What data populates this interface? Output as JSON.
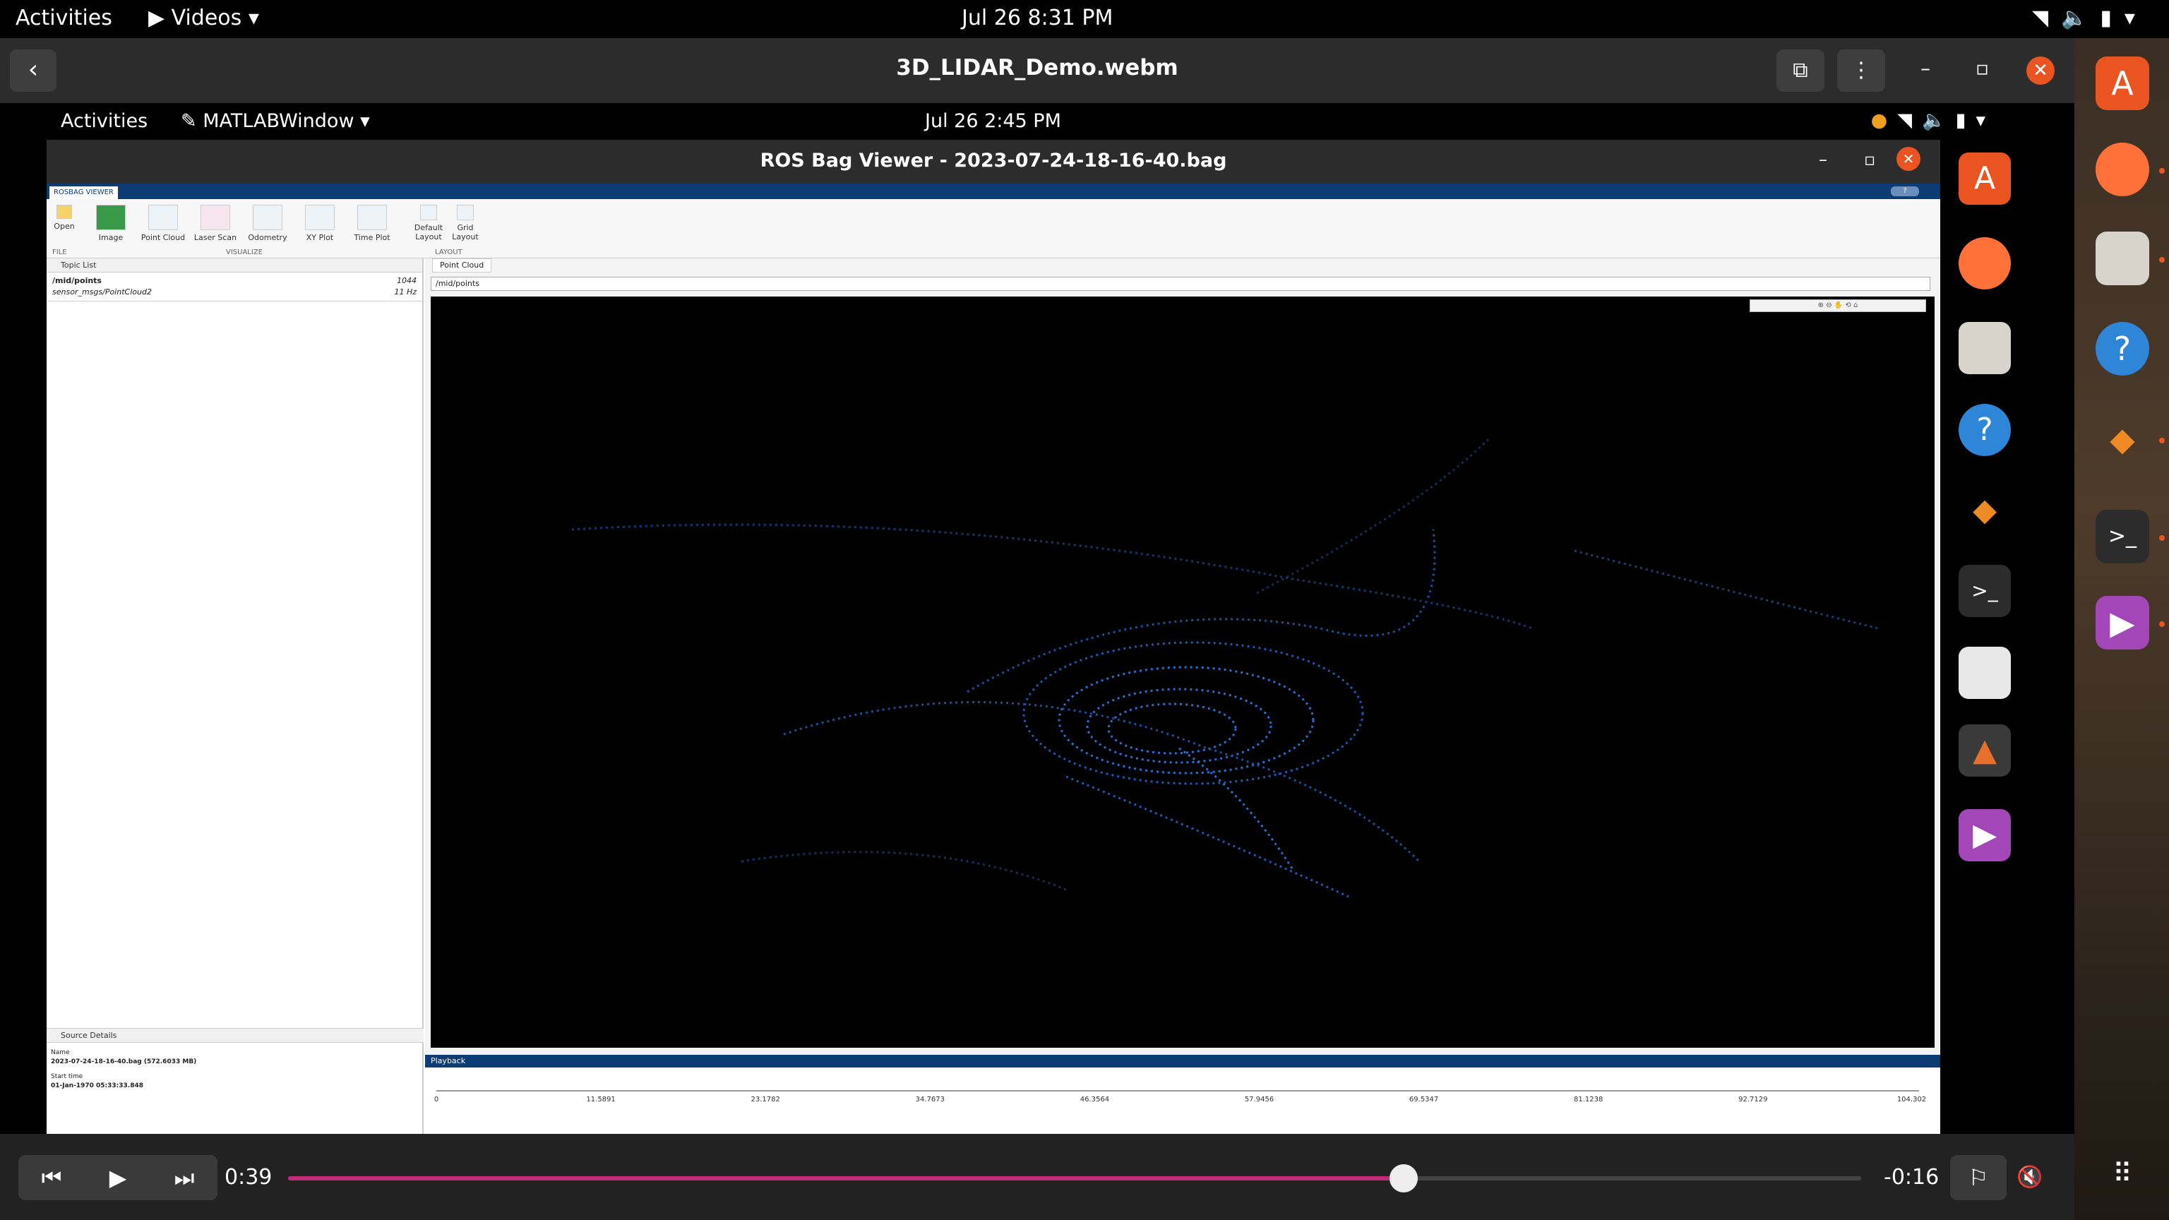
{
  "topbar": {
    "activities": "Activities",
    "app": "Videos",
    "datetime": "Jul 26  8:31 PM"
  },
  "player": {
    "title": "3D_LIDAR_Demo.webm",
    "elapsed": "0:39",
    "remaining": "-0:16",
    "progress_fraction": 0.709
  },
  "inner": {
    "activities": "Activities",
    "app": "MATLABWindow",
    "datetime": "Jul 26   2:45 PM",
    "window_title": "ROS Bag Viewer - 2023-07-24-18-16-40.bag"
  },
  "matlab": {
    "tab": "ROSBAG VIEWER",
    "tools": {
      "open": "Open",
      "image": "Image",
      "point_cloud": "Point Cloud",
      "laser_scan": "Laser Scan",
      "odometry": "Odometry",
      "xy_plot": "XY Plot",
      "time_plot": "Time Plot",
      "default_layout": "Default Layout",
      "grid_layout": "Grid Layout"
    },
    "sections": {
      "file": "FILE",
      "visualize": "VISUALIZE",
      "layout": "LAYOUT"
    },
    "topic_list": {
      "header": "Topic List",
      "topic": "/mid/points",
      "type": "sensor_msgs/PointCloud2",
      "count": "1044",
      "rate": "11 Hz"
    },
    "source_details": {
      "header": "Source Details",
      "name_label": "Name",
      "name_value": "2023-07-24-18-16-40.bag (572.6033 MB)",
      "start_label": "Start time",
      "start_value": "01-Jan-1970 05:33:33.848"
    },
    "point_cloud": {
      "tab": "Point Cloud",
      "topic": "/mid/points"
    },
    "playback": {
      "header": "Playback",
      "ticks": [
        "0",
        "11.5891",
        "23.1782",
        "34.7673",
        "46.3564",
        "57.9456",
        "69.5347",
        "81.1238",
        "92.7129",
        "104.302"
      ]
    }
  }
}
